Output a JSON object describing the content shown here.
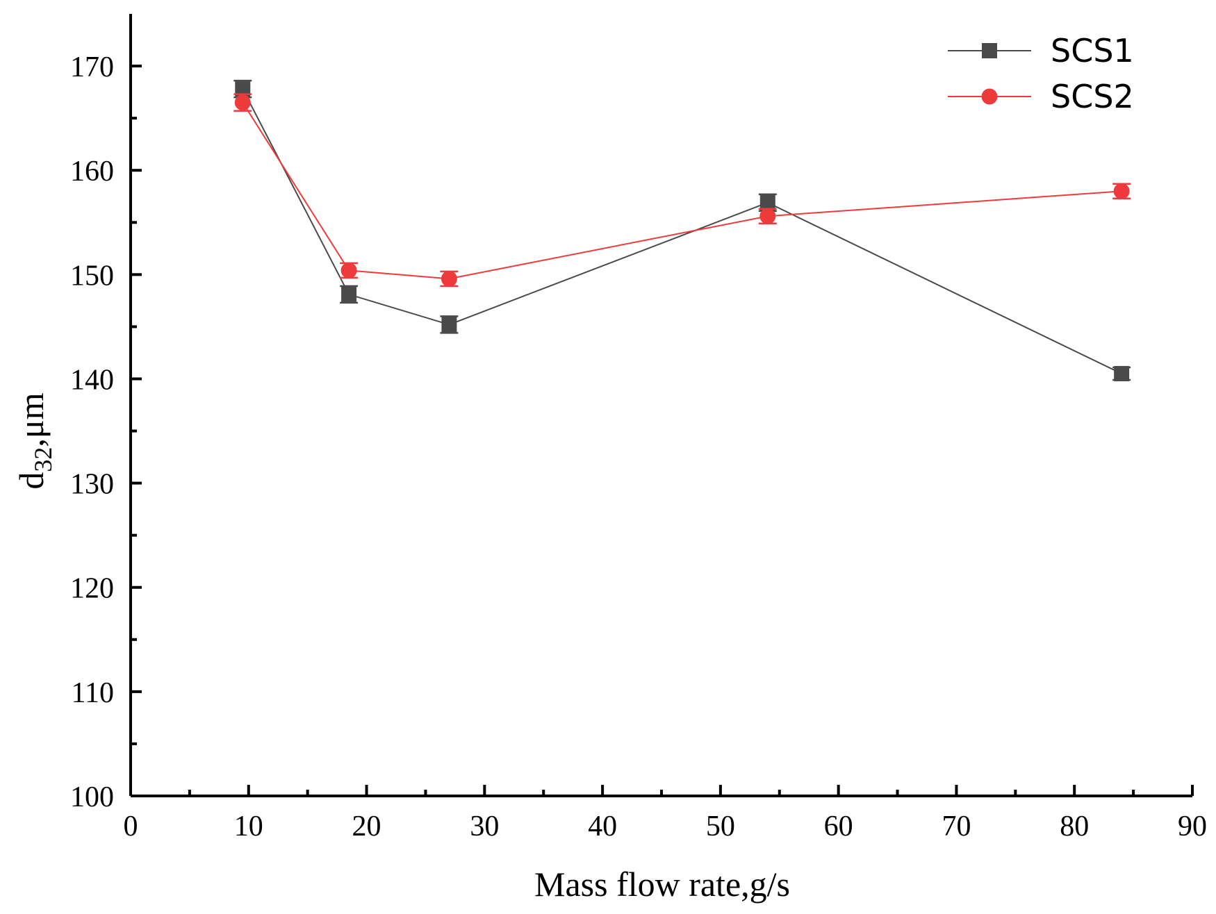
{
  "chart_data": {
    "type": "line",
    "title": "",
    "xlabel": "Mass flow rate,g/s",
    "ylabel_main": "d",
    "ylabel_sub": "32",
    "ylabel_unit": ",μm",
    "xlim": [
      0,
      90
    ],
    "ylim": [
      100,
      175
    ],
    "xticks": [
      0,
      10,
      20,
      30,
      40,
      50,
      60,
      70,
      80,
      90
    ],
    "yticks": [
      100,
      110,
      120,
      130,
      140,
      150,
      160,
      170
    ],
    "grid": false,
    "legend_position": "top-right",
    "series": [
      {
        "name": "SCS1",
        "color": "#4a4a4a",
        "marker": "square",
        "x": [
          9.5,
          18.5,
          27,
          54,
          84
        ],
        "y": [
          167.8,
          148.1,
          145.2,
          156.9,
          140.5
        ],
        "err": [
          0.8,
          0.8,
          0.8,
          0.8,
          0.6
        ]
      },
      {
        "name": "SCS2",
        "color": "#ee3a3a",
        "marker": "circle",
        "x": [
          9.5,
          18.5,
          27,
          54,
          84
        ],
        "y": [
          166.5,
          150.4,
          149.6,
          155.6,
          158.0
        ],
        "err": [
          0.8,
          0.7,
          0.7,
          0.7,
          0.7
        ]
      }
    ]
  }
}
